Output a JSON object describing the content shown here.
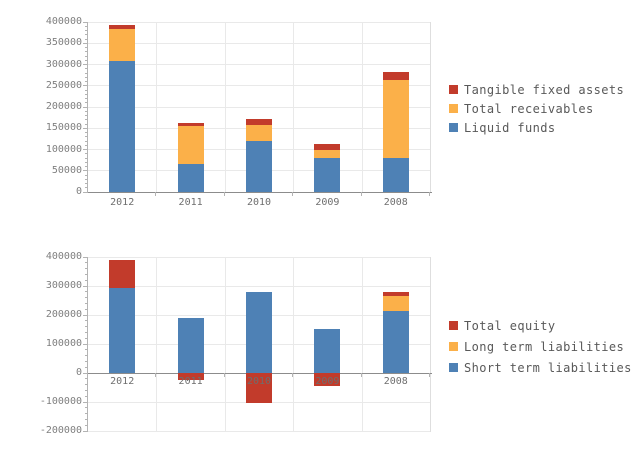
{
  "colors": {
    "red": "#c23b2b",
    "orange": "#fbb049",
    "blue": "#4e81b5",
    "grid": "#e9e9e9",
    "spine": "#b3b3b3",
    "spine_faint": "#dedede",
    "axis_line": "#8c8c8c",
    "tick_text": "#7f7f7f",
    "xlabel_text": "#6e6e6e",
    "legend_text": "#595959"
  },
  "chart_data": [
    {
      "id": "assets-structure",
      "type": "bar",
      "stacked": true,
      "categories": [
        "2012",
        "2011",
        "2010",
        "2009",
        "2008"
      ],
      "y_ticks": [
        "400000",
        "350000",
        "300000",
        "250000",
        "200000",
        "150000",
        "100000",
        "50000",
        "0"
      ],
      "ylim": [
        0,
        400000
      ],
      "grid": true,
      "legend_position": "right",
      "series": [
        {
          "name": "Tangible fixed assets",
          "color": "red",
          "values": [
            8000,
            7000,
            14000,
            14000,
            19000
          ]
        },
        {
          "name": "Total receivables",
          "color": "orange",
          "values": [
            76000,
            89000,
            36000,
            18000,
            183000
          ]
        },
        {
          "name": "Liquid funds",
          "color": "blue",
          "values": [
            308000,
            67000,
            121000,
            80000,
            80000
          ]
        }
      ]
    },
    {
      "id": "financing-structure",
      "type": "bar",
      "stacked": true,
      "categories": [
        "2012",
        "2011",
        "2010",
        "2009",
        "2008"
      ],
      "y_ticks": [
        "400000",
        "300000",
        "200000",
        "100000",
        "0",
        "-100000",
        "-200000"
      ],
      "ylim": [
        -200000,
        400000
      ],
      "grid": true,
      "legend_position": "right",
      "series": [
        {
          "name": "Total equity",
          "color": "red",
          "values": [
            98000,
            -25000,
            -105000,
            -45000,
            13000
          ]
        },
        {
          "name": "Long term liabilities",
          "color": "orange",
          "values": [
            0,
            0,
            0,
            0,
            50000
          ]
        },
        {
          "name": "Short term liabilities",
          "color": "blue",
          "values": [
            292000,
            190000,
            280000,
            152000,
            215000
          ]
        }
      ]
    }
  ]
}
